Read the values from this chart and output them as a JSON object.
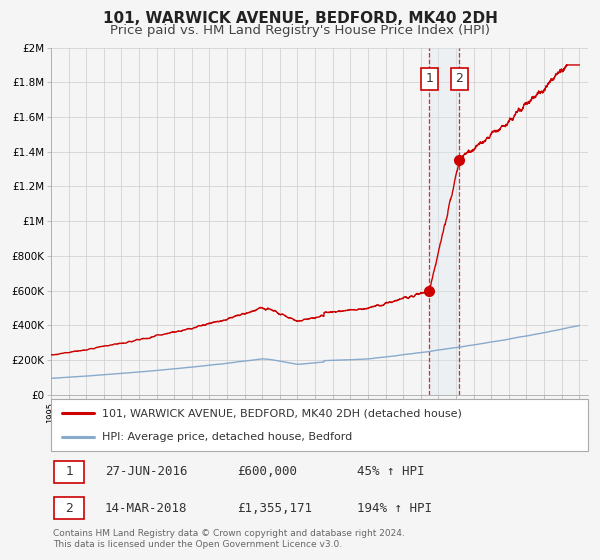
{
  "title": "101, WARWICK AVENUE, BEDFORD, MK40 2DH",
  "subtitle": "Price paid vs. HM Land Registry's House Price Index (HPI)",
  "ylim": [
    0,
    2000000
  ],
  "xlim_start": 1995.0,
  "xlim_end": 2025.5,
  "yticks": [
    0,
    200000,
    400000,
    600000,
    800000,
    1000000,
    1200000,
    1400000,
    1600000,
    1800000,
    2000000
  ],
  "ytick_labels": [
    "£0",
    "£200K",
    "£400K",
    "£600K",
    "£800K",
    "£1M",
    "£1.2M",
    "£1.4M",
    "£1.6M",
    "£1.8M",
    "£2M"
  ],
  "background_color": "#f5f5f5",
  "plot_bg_color": "#f5f5f5",
  "grid_color": "#cccccc",
  "line1_color": "#cc0000",
  "line2_color": "#88aacc",
  "transaction1_x": 2016.49,
  "transaction1_y": 600000,
  "transaction2_x": 2018.2,
  "transaction2_y": 1355171,
  "vline1_x": 2016.49,
  "vline2_x": 2018.2,
  "shade_color": "#dce8f0",
  "legend_line1": "101, WARWICK AVENUE, BEDFORD, MK40 2DH (detached house)",
  "legend_line2": "HPI: Average price, detached house, Bedford",
  "table_row1": [
    "1",
    "27-JUN-2016",
    "£600,000",
    "45% ↑ HPI"
  ],
  "table_row2": [
    "2",
    "14-MAR-2018",
    "£1,355,171",
    "194% ↑ HPI"
  ],
  "footnote": "Contains HM Land Registry data © Crown copyright and database right 2024.\nThis data is licensed under the Open Government Licence v3.0.",
  "title_fontsize": 11,
  "subtitle_fontsize": 9.5,
  "tick_fontsize": 7.5,
  "legend_fontsize": 8,
  "table_fontsize": 9,
  "footnote_fontsize": 6.5
}
